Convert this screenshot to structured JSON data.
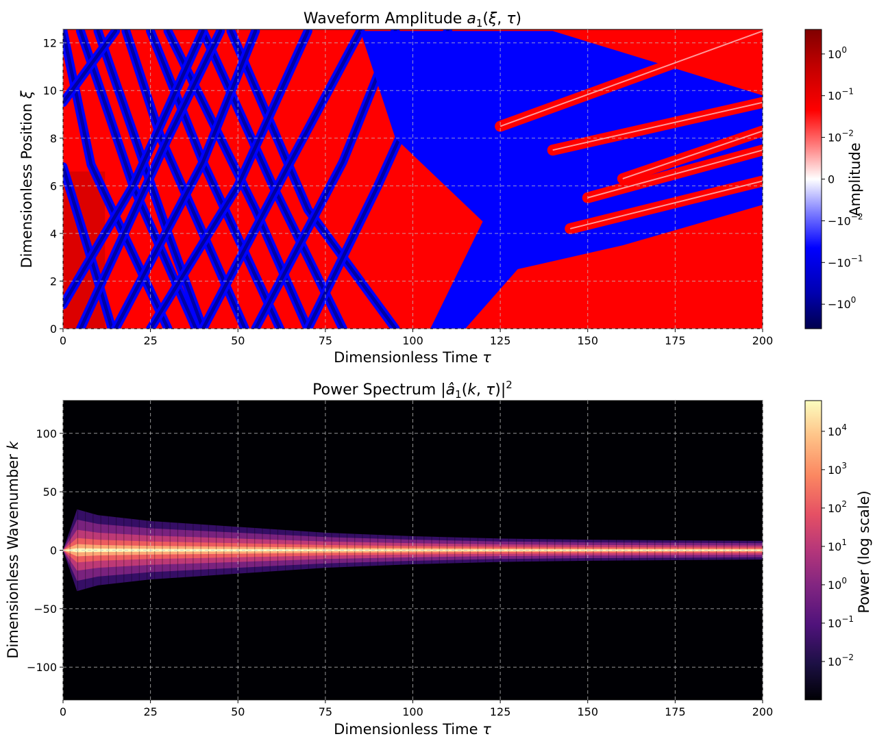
{
  "chart_data": [
    {
      "type": "heatmap",
      "title": "Waveform Amplitude a₁(ξ, τ)",
      "xlabel": "Dimensionless Time τ",
      "ylabel": "Dimensionless Position ξ",
      "xlim": [
        0,
        200
      ],
      "ylim": [
        0,
        12.566
      ],
      "xticks": [
        0,
        25,
        50,
        75,
        100,
        125,
        150,
        175,
        200
      ],
      "yticks": [
        0,
        2,
        4,
        6,
        8,
        10,
        12
      ],
      "grid": true,
      "colormap": "seismic (symmetric log)",
      "colorbar": {
        "label": "Amplitude",
        "ticks": [
          "10^0",
          "10^-1",
          "10^-2",
          "0",
          "−10^-2",
          "−10^-1",
          "−10^0"
        ],
        "range": [
          -2,
          2
        ]
      },
      "description_values": {
        "initial_positive_band_xi": [
          0,
          6.7
        ],
        "transition_tau": 110
      }
    },
    {
      "type": "heatmap",
      "title": "Power Spectrum |â₁(k, τ)|²",
      "xlabel": "Dimensionless Time τ",
      "ylabel": "Dimensionless Wavenumber k",
      "xlim": [
        0,
        200
      ],
      "ylim": [
        -128,
        128
      ],
      "xticks": [
        0,
        25,
        50,
        75,
        100,
        125,
        150,
        175,
        200
      ],
      "yticks": [
        100,
        50,
        0,
        -50,
        -100
      ],
      "grid": true,
      "colormap": "magma (log scale)",
      "colorbar": {
        "label": "Power (log scale)",
        "ticks": [
          "10^4",
          "10^3",
          "10^2",
          "10^1",
          "10^0",
          "10^-1",
          "10^-2"
        ],
        "range_log10": [
          -3,
          4.8
        ]
      },
      "envelope_k_halfwidth": [
        {
          "tau": 0,
          "k": 0
        },
        {
          "tau": 4,
          "k": 35
        },
        {
          "tau": 10,
          "k": 30
        },
        {
          "tau": 25,
          "k": 25
        },
        {
          "tau": 50,
          "k": 20
        },
        {
          "tau": 75,
          "k": 15
        },
        {
          "tau": 100,
          "k": 12
        },
        {
          "tau": 125,
          "k": 10
        },
        {
          "tau": 150,
          "k": 9
        },
        {
          "tau": 200,
          "k": 8
        }
      ]
    }
  ],
  "texts": {
    "top_title": "Waveform Amplitude",
    "top_xlabel": "Dimensionless Time",
    "top_ylabel": "Dimensionless Position",
    "top_cbar_label": "Amplitude",
    "bot_title": "Power Spectrum",
    "bot_xlabel": "Dimensionless Time",
    "bot_ylabel": "Dimensionless Wavenumber",
    "bot_cbar_label": "Power (log scale)"
  }
}
